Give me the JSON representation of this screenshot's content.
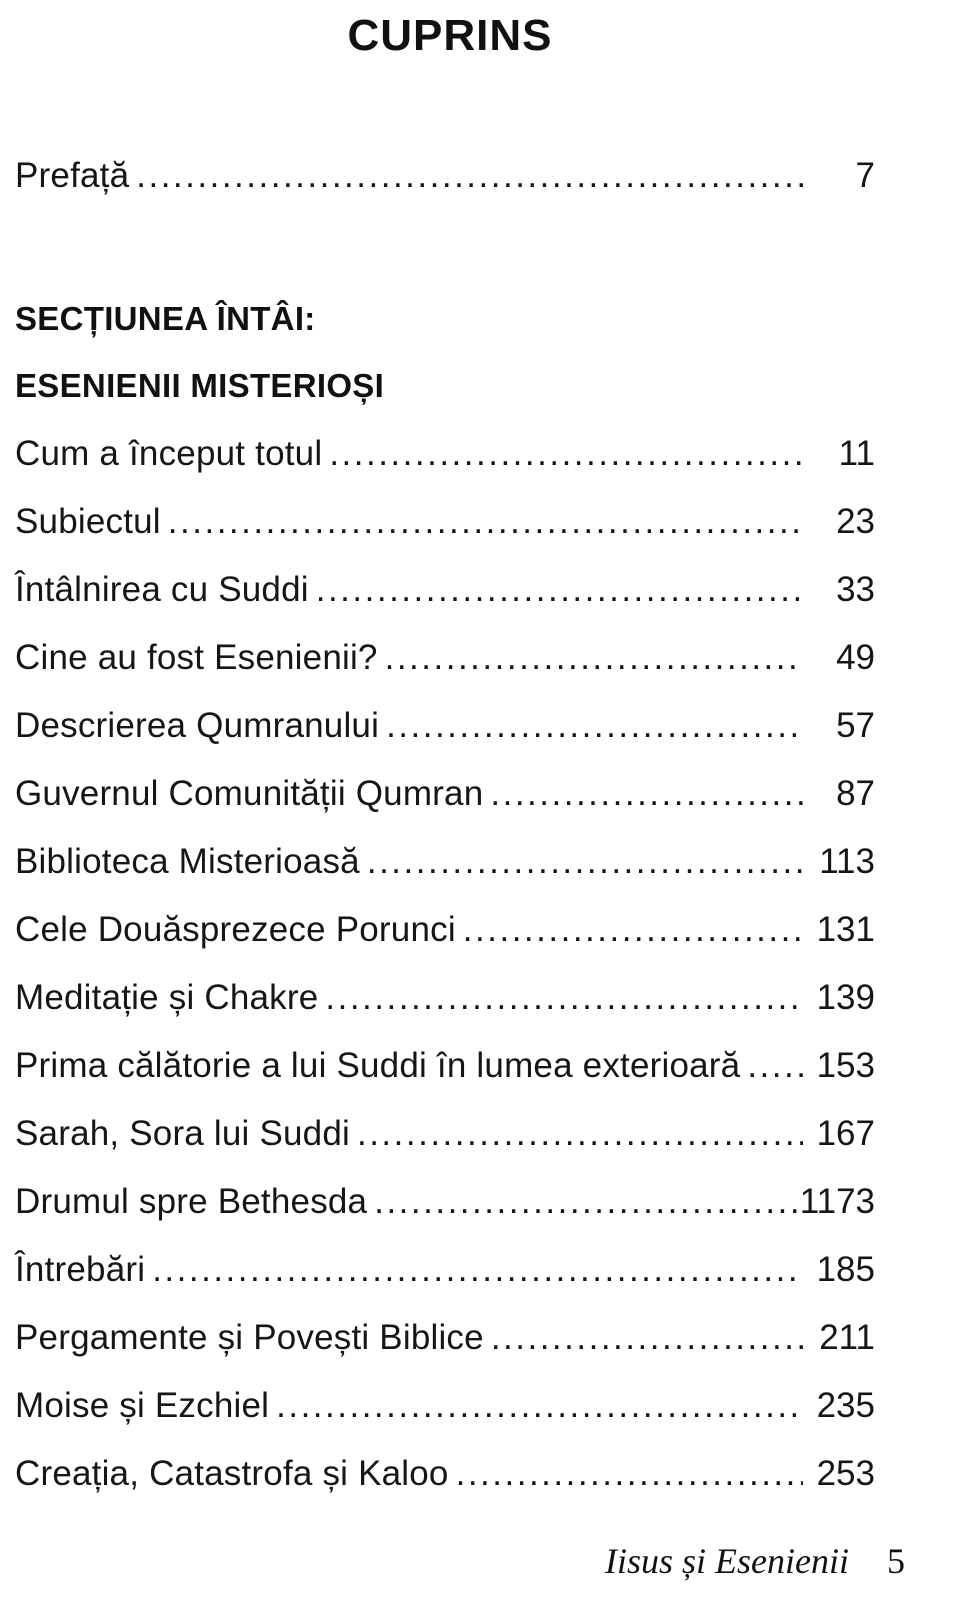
{
  "page": {
    "title": "CUPRINS",
    "footer": {
      "book_title": "Iisus și Esenienii",
      "page_number": "5"
    }
  },
  "toc": {
    "preface": {
      "label": "Prefață",
      "page": "7"
    },
    "section": {
      "heading_line1": "SECȚIUNEA ÎNTÂI:",
      "heading_line2": "ESENIENII MISTERIOȘI"
    },
    "entries": [
      {
        "label": "Cum a început totul",
        "page": "11"
      },
      {
        "label": "Subiectul",
        "page": "23"
      },
      {
        "label": "Întâlnirea cu Suddi",
        "page": "33"
      },
      {
        "label": "Cine au fost Esenienii?",
        "page": "49"
      },
      {
        "label": "Descrierea Qumranului",
        "page": "57"
      },
      {
        "label": "Guvernul Comunității Qumran",
        "page": "87"
      },
      {
        "label": "Biblioteca Misterioasă",
        "page": "113"
      },
      {
        "label": "Cele Douăsprezece Porunci",
        "page": "131"
      },
      {
        "label": "Meditație și Chakre",
        "page": "139"
      },
      {
        "label": "Prima călătorie a lui Suddi în lumea exterioară",
        "page": "153"
      },
      {
        "label": "Sarah, Sora lui Suddi",
        "page": "167"
      },
      {
        "label": "Drumul spre Bethesda",
        "page": "1173"
      },
      {
        "label": "Întrebări",
        "page": "185"
      },
      {
        "label": "Pergamente și Povești Biblice",
        "page": "211"
      },
      {
        "label": "Moise și Ezchiel",
        "page": "235"
      },
      {
        "label": "Creația, Catastrofa și Kaloo",
        "page": "253"
      }
    ]
  }
}
